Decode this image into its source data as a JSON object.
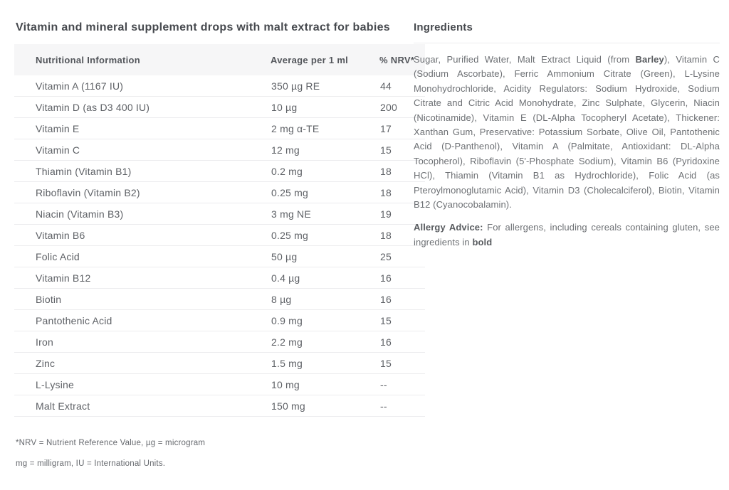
{
  "page": {
    "title": "Vitamin and mineral supplement drops with malt extract for babies"
  },
  "colors": {
    "background": "#ffffff",
    "table_header_bg": "#f6f6f7",
    "row_divider": "#ececee",
    "text_primary": "#5e6166",
    "text_secondary": "#6d7074"
  },
  "table": {
    "headers": [
      "Nutritional Information",
      "Average per 1 ml",
      "% NRV*"
    ],
    "rows": [
      [
        "Vitamin A (1167 IU)",
        "350 µg RE",
        "44"
      ],
      [
        "Vitamin D (as D3 400 IU)",
        "10 µg",
        "200"
      ],
      [
        "Vitamin E",
        "2 mg α-TE",
        "17"
      ],
      [
        "Vitamin C",
        "12 mg",
        "15"
      ],
      [
        "Thiamin (Vitamin B1)",
        "0.2 mg",
        "18"
      ],
      [
        "Riboflavin (Vitamin B2)",
        "0.25 mg",
        "18"
      ],
      [
        "Niacin (Vitamin B3)",
        "3 mg NE",
        "19"
      ],
      [
        "Vitamin B6",
        "0.25 mg",
        "18"
      ],
      [
        "Folic Acid",
        "50 µg",
        "25"
      ],
      [
        "Vitamin B12",
        "0.4 µg",
        "16"
      ],
      [
        "Biotin",
        "8 µg",
        "16"
      ],
      [
        "Pantothenic Acid",
        "0.9 mg",
        "15"
      ],
      [
        "Iron",
        "2.2 mg",
        "16"
      ],
      [
        "Zinc",
        "1.5 mg",
        "15"
      ],
      [
        "L-Lysine",
        "10 mg",
        "--"
      ],
      [
        "Malt Extract",
        "150 mg",
        "--"
      ]
    ],
    "footnotes": [
      "*NRV = Nutrient Reference Value, µg = microgram",
      "mg = milligram, IU = International Units."
    ]
  },
  "ingredients": {
    "heading": "Ingredients",
    "segments": [
      {
        "text": "Sugar, Purified Water, Malt Extract Liquid (from ",
        "bold": false
      },
      {
        "text": "Barley",
        "bold": true
      },
      {
        "text": "), Vitamin C (Sodium Ascorbate), Ferric Ammonium Citrate (Green), L-Lysine Monohydrochloride, Acidity Regulators: Sodium Hydroxide, Sodium Citrate and Citric Acid Monohydrate, Zinc Sulphate, Glycerin, Niacin (Nicotinamide), Vitamin E (DL-Alpha Tocopheryl Acetate), Thickener: Xanthan Gum, Preservative: Potassium Sorbate, Olive Oil, Pantothenic Acid (D-Panthenol), Vitamin A (Palmitate, Antioxidant: DL-Alpha Tocopherol), Riboflavin (5'-Phosphate Sodium), Vitamin B6 (Pyridoxine HCl), Thiamin (Vitamin B1 as Hydrochloride), Folic Acid (as Pteroylmonoglutamic Acid), Vitamin D3 (Cholecalciferol), Biotin, Vitamin B12 (Cyanocobalamin).",
        "bold": false
      }
    ],
    "allergy_segments": [
      {
        "text": "Allergy Advice:",
        "bold": true
      },
      {
        "text": " For allergens, including cereals containing gluten, see ingredients in ",
        "bold": false
      },
      {
        "text": "bold",
        "bold": true
      }
    ]
  }
}
